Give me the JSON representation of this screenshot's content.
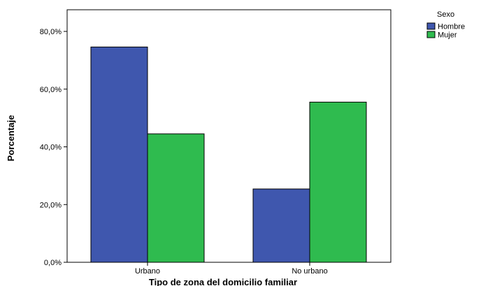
{
  "chart_data": {
    "type": "bar",
    "xlabel": "Tipo de zona del domicilio familiar",
    "ylabel": "Porcentaje",
    "categories": [
      "Urbano",
      "No urbano"
    ],
    "series": [
      {
        "name": "Hombre",
        "values": [
          74.6,
          25.4
        ],
        "color": "#3f57ae"
      },
      {
        "name": "Mujer",
        "values": [
          44.5,
          55.5
        ],
        "color": "#2fbb4f"
      }
    ],
    "ylim": [
      0,
      87.5
    ],
    "yticks": [
      {
        "value": 0,
        "label": "0,0%"
      },
      {
        "value": 20,
        "label": "20,0%"
      },
      {
        "value": 40,
        "label": "40,0%"
      },
      {
        "value": 60,
        "label": "60,0%"
      },
      {
        "value": 80,
        "label": "80,0%"
      }
    ],
    "legend": {
      "title": "Sexo",
      "position": "top-right"
    },
    "grid": false
  }
}
